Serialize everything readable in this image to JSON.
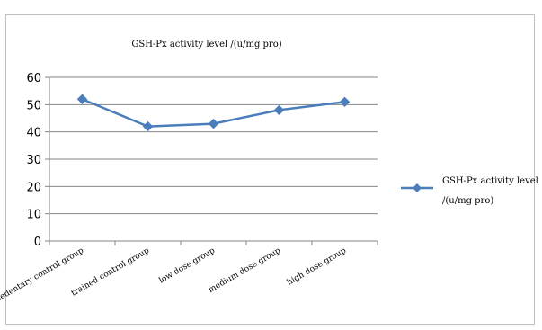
{
  "chart_data": {
    "type": "line",
    "title": "GSH-Px activity level /(u/mg pro)",
    "categories": [
      "sedentary control group",
      "trained control group",
      "low dose group",
      "medium dose group",
      "high dose group"
    ],
    "series": [
      {
        "name": "GSH-Px activity level /(u/mg pro)",
        "name_lines": [
          "GSH-Px activity level",
          "/(u/mg pro)"
        ],
        "values": [
          52,
          42,
          43,
          48,
          51
        ],
        "color": "#4a7ebb"
      }
    ],
    "ylim": [
      0,
      60
    ],
    "yticks": [
      0,
      10,
      20,
      30,
      40,
      50,
      60
    ],
    "grid": true,
    "legend": "right"
  }
}
